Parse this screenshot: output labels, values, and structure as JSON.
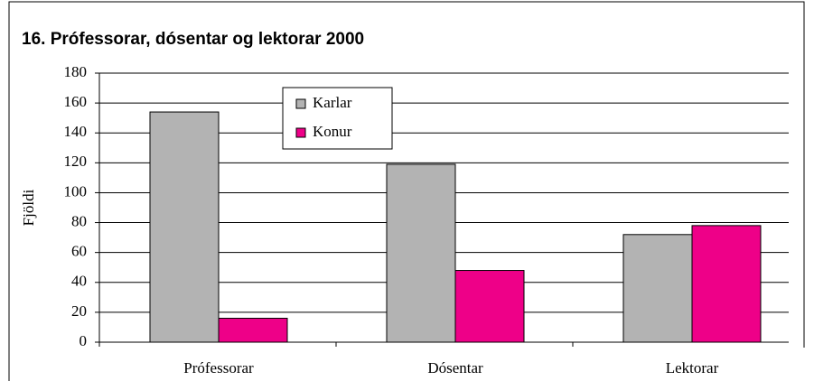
{
  "chart_data": {
    "type": "bar",
    "title": "16.  Prófessorar, dósentar og lektorar 2000",
    "ylabel": "Fjöldi",
    "categories": [
      "Prófessorar",
      "Dósentar",
      "Lektorar"
    ],
    "series": [
      {
        "name": "Karlar",
        "color": "#b3b3b3",
        "values": [
          154,
          119,
          72
        ]
      },
      {
        "name": "Konur",
        "color": "#ee0088",
        "values": [
          16,
          48,
          78
        ]
      }
    ],
    "ylim": [
      0,
      180
    ],
    "yticks": [
      0,
      20,
      40,
      60,
      80,
      100,
      120,
      140,
      160,
      180
    ],
    "grid": true
  }
}
